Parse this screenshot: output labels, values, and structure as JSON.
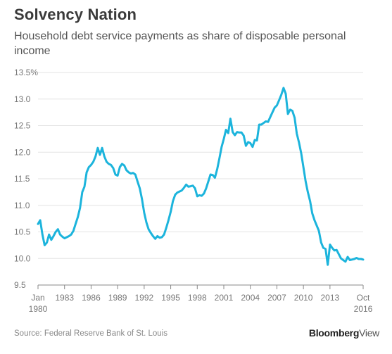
{
  "header": {
    "title": "Solvency Nation",
    "subtitle": "Household debt service payments as share of disposable personal income"
  },
  "footer": {
    "source": "Source: Federal Reserve Bank of St. Louis",
    "brand_main": "Bloomberg",
    "brand_sub": "View"
  },
  "colors": {
    "line": "#1cb4dc",
    "grid": "#e3e3e3",
    "axis": "#888888"
  },
  "chart_data": {
    "type": "line",
    "title": "Solvency Nation",
    "subtitle": "Household debt service payments as share of disposable personal income",
    "xlim": [
      1980.0,
      2016.75
    ],
    "ylim": [
      9.5,
      13.5
    ],
    "y_ticks": [
      {
        "value": 13.5,
        "label": "13.5%"
      },
      {
        "value": 13.0,
        "label": "13.0"
      },
      {
        "value": 12.5,
        "label": "12.5"
      },
      {
        "value": 12.0,
        "label": "12.0"
      },
      {
        "value": 11.5,
        "label": "11.5"
      },
      {
        "value": 11.0,
        "label": "11.0"
      },
      {
        "value": 10.5,
        "label": "10.5"
      },
      {
        "value": 10.0,
        "label": "10.0"
      },
      {
        "value": 9.5,
        "label": "9.5"
      }
    ],
    "x_ticks": [
      {
        "value": 1980.0,
        "label": "Jan",
        "label2": "1980"
      },
      {
        "value": 1983.0,
        "label": "1983"
      },
      {
        "value": 1986.0,
        "label": "1986"
      },
      {
        "value": 1989.0,
        "label": "1989"
      },
      {
        "value": 1992.0,
        "label": "1992"
      },
      {
        "value": 1995.0,
        "label": "1995"
      },
      {
        "value": 1998.0,
        "label": "1998"
      },
      {
        "value": 2001.0,
        "label": "2001"
      },
      {
        "value": 2004.0,
        "label": "2004"
      },
      {
        "value": 2007.0,
        "label": "2007"
      },
      {
        "value": 2010.0,
        "label": "2010"
      },
      {
        "value": 2013.0,
        "label": "2013"
      },
      {
        "value": 2016.75,
        "label": "Oct",
        "label2": "2016"
      }
    ],
    "grid": true,
    "series": [
      {
        "values": [
          [
            1980.0,
            10.65
          ],
          [
            1980.25,
            10.72
          ],
          [
            1980.5,
            10.45
          ],
          [
            1980.75,
            10.25
          ],
          [
            1981.0,
            10.3
          ],
          [
            1981.25,
            10.45
          ],
          [
            1981.5,
            10.35
          ],
          [
            1981.75,
            10.42
          ],
          [
            1982.0,
            10.5
          ],
          [
            1982.25,
            10.55
          ],
          [
            1982.5,
            10.45
          ],
          [
            1982.75,
            10.41
          ],
          [
            1983.0,
            10.38
          ],
          [
            1983.25,
            10.4
          ],
          [
            1983.5,
            10.42
          ],
          [
            1983.75,
            10.45
          ],
          [
            1984.0,
            10.52
          ],
          [
            1984.25,
            10.65
          ],
          [
            1984.5,
            10.78
          ],
          [
            1984.75,
            10.95
          ],
          [
            1985.0,
            11.25
          ],
          [
            1985.25,
            11.35
          ],
          [
            1985.5,
            11.62
          ],
          [
            1985.75,
            11.72
          ],
          [
            1986.0,
            11.76
          ],
          [
            1986.25,
            11.82
          ],
          [
            1986.5,
            11.92
          ],
          [
            1986.75,
            12.08
          ],
          [
            1987.0,
            11.95
          ],
          [
            1987.25,
            12.08
          ],
          [
            1987.5,
            11.92
          ],
          [
            1987.75,
            11.82
          ],
          [
            1988.0,
            11.78
          ],
          [
            1988.25,
            11.76
          ],
          [
            1988.5,
            11.7
          ],
          [
            1988.75,
            11.58
          ],
          [
            1989.0,
            11.56
          ],
          [
            1989.25,
            11.72
          ],
          [
            1989.5,
            11.78
          ],
          [
            1989.75,
            11.75
          ],
          [
            1990.0,
            11.66
          ],
          [
            1990.25,
            11.62
          ],
          [
            1990.5,
            11.6
          ],
          [
            1990.75,
            11.61
          ],
          [
            1991.0,
            11.58
          ],
          [
            1991.25,
            11.45
          ],
          [
            1991.5,
            11.32
          ],
          [
            1991.75,
            11.12
          ],
          [
            1992.0,
            10.86
          ],
          [
            1992.25,
            10.68
          ],
          [
            1992.5,
            10.55
          ],
          [
            1992.75,
            10.48
          ],
          [
            1993.0,
            10.42
          ],
          [
            1993.25,
            10.37
          ],
          [
            1993.5,
            10.42
          ],
          [
            1993.75,
            10.39
          ],
          [
            1994.0,
            10.4
          ],
          [
            1994.25,
            10.45
          ],
          [
            1994.5,
            10.58
          ],
          [
            1994.75,
            10.72
          ],
          [
            1995.0,
            10.88
          ],
          [
            1995.25,
            11.08
          ],
          [
            1995.5,
            11.2
          ],
          [
            1995.75,
            11.24
          ],
          [
            1996.0,
            11.26
          ],
          [
            1996.25,
            11.28
          ],
          [
            1996.5,
            11.33
          ],
          [
            1996.75,
            11.39
          ],
          [
            1997.0,
            11.35
          ],
          [
            1997.25,
            11.36
          ],
          [
            1997.5,
            11.37
          ],
          [
            1997.75,
            11.32
          ],
          [
            1998.0,
            11.17
          ],
          [
            1998.25,
            11.19
          ],
          [
            1998.5,
            11.18
          ],
          [
            1998.75,
            11.22
          ],
          [
            1999.0,
            11.32
          ],
          [
            1999.25,
            11.45
          ],
          [
            1999.5,
            11.58
          ],
          [
            1999.75,
            11.57
          ],
          [
            2000.0,
            11.52
          ],
          [
            2000.25,
            11.68
          ],
          [
            2000.5,
            11.88
          ],
          [
            2000.75,
            12.1
          ],
          [
            2001.0,
            12.25
          ],
          [
            2001.25,
            12.42
          ],
          [
            2001.5,
            12.36
          ],
          [
            2001.75,
            12.63
          ],
          [
            2002.0,
            12.38
          ],
          [
            2002.25,
            12.32
          ],
          [
            2002.5,
            12.38
          ],
          [
            2002.75,
            12.37
          ],
          [
            2003.0,
            12.37
          ],
          [
            2003.25,
            12.31
          ],
          [
            2003.5,
            12.12
          ],
          [
            2003.75,
            12.19
          ],
          [
            2004.0,
            12.17
          ],
          [
            2004.25,
            12.1
          ],
          [
            2004.5,
            12.23
          ],
          [
            2004.75,
            12.22
          ],
          [
            2005.0,
            12.52
          ],
          [
            2005.25,
            12.52
          ],
          [
            2005.5,
            12.55
          ],
          [
            2005.75,
            12.58
          ],
          [
            2006.0,
            12.57
          ],
          [
            2006.25,
            12.66
          ],
          [
            2006.5,
            12.75
          ],
          [
            2006.75,
            12.84
          ],
          [
            2007.0,
            12.88
          ],
          [
            2007.25,
            12.98
          ],
          [
            2007.5,
            13.08
          ],
          [
            2007.75,
            13.21
          ],
          [
            2008.0,
            13.1
          ],
          [
            2008.25,
            12.72
          ],
          [
            2008.5,
            12.8
          ],
          [
            2008.75,
            12.78
          ],
          [
            2009.0,
            12.65
          ],
          [
            2009.25,
            12.35
          ],
          [
            2009.5,
            12.18
          ],
          [
            2009.75,
            11.98
          ],
          [
            2010.0,
            11.72
          ],
          [
            2010.25,
            11.45
          ],
          [
            2010.5,
            11.25
          ],
          [
            2010.75,
            11.08
          ],
          [
            2011.0,
            10.85
          ],
          [
            2011.25,
            10.72
          ],
          [
            2011.5,
            10.62
          ],
          [
            2011.75,
            10.52
          ],
          [
            2012.0,
            10.3
          ],
          [
            2012.25,
            10.2
          ],
          [
            2012.5,
            10.18
          ],
          [
            2012.75,
            9.88
          ],
          [
            2013.0,
            10.26
          ],
          [
            2013.25,
            10.2
          ],
          [
            2013.5,
            10.15
          ],
          [
            2013.75,
            10.16
          ],
          [
            2014.0,
            10.08
          ],
          [
            2014.25,
            10.0
          ],
          [
            2014.5,
            9.97
          ],
          [
            2014.75,
            9.94
          ],
          [
            2015.0,
            10.03
          ],
          [
            2015.25,
            9.97
          ],
          [
            2015.5,
            9.98
          ],
          [
            2015.75,
            9.99
          ],
          [
            2016.0,
            10.01
          ],
          [
            2016.25,
            9.99
          ],
          [
            2016.5,
            9.99
          ],
          [
            2016.75,
            9.98
          ]
        ]
      }
    ]
  }
}
